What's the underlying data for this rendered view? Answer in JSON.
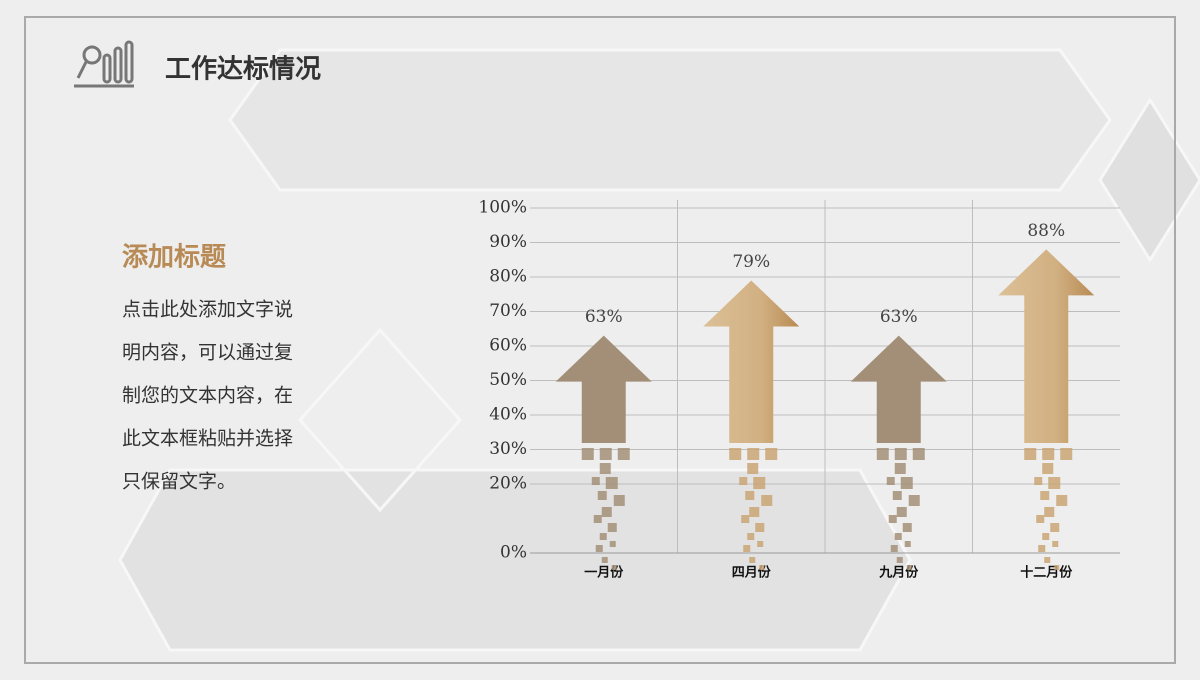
{
  "header": {
    "title": "工作达标情况"
  },
  "sidebar": {
    "heading": "添加标题",
    "lines": [
      "点击此处添加文字说",
      "明内容，可以通过复",
      "制您的文本内容，在",
      "此文本框粘贴并选择",
      "只保留文字。"
    ]
  },
  "chart_data": {
    "type": "bar",
    "categories": [
      "一月份",
      "四月份",
      "九月份",
      "十二月份"
    ],
    "values": [
      63,
      79,
      63,
      88
    ],
    "value_labels": [
      "63%",
      "79%",
      "63%",
      "88%"
    ],
    "colors": [
      "#a38f78",
      "#c9a574",
      "#a38f78",
      "#c9a574"
    ],
    "ylim": [
      0,
      100
    ],
    "yticks": [
      {
        "value": 0,
        "label": "0%"
      },
      {
        "value": 20,
        "label": "20%"
      },
      {
        "value": 30,
        "label": "30%"
      },
      {
        "value": 40,
        "label": "40%"
      },
      {
        "value": 50,
        "label": "50%"
      },
      {
        "value": 60,
        "label": "60%"
      },
      {
        "value": 70,
        "label": "70%"
      },
      {
        "value": 80,
        "label": "80%"
      },
      {
        "value": 90,
        "label": "90%"
      },
      {
        "value": 100,
        "label": "100%"
      }
    ],
    "grid": true
  }
}
